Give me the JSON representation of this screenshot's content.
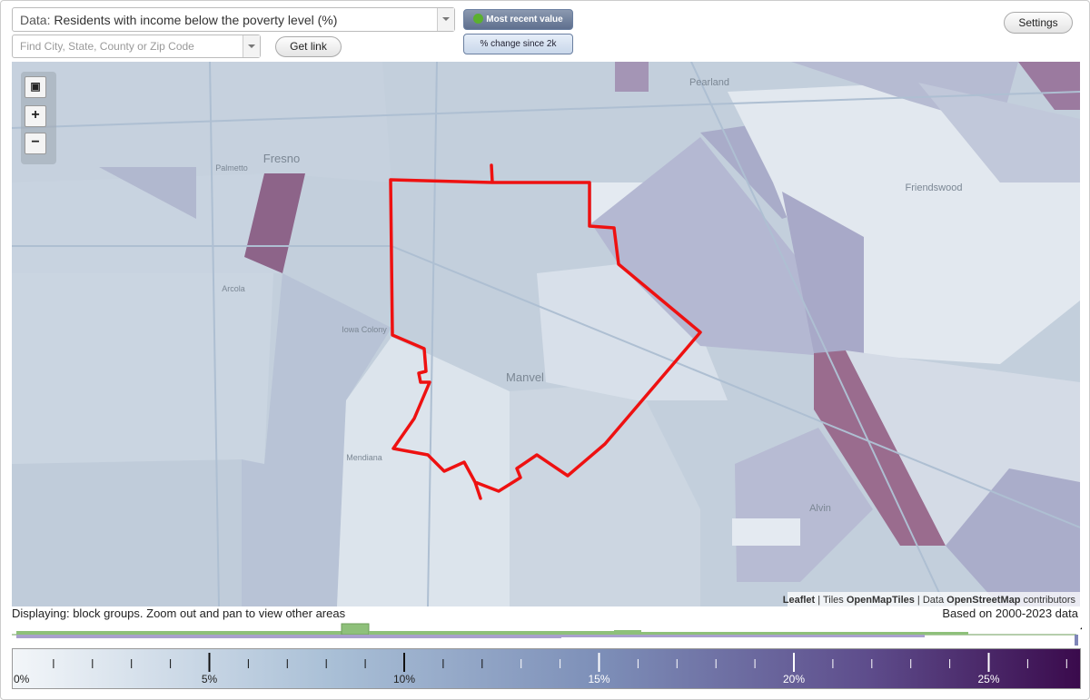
{
  "toolbar": {
    "data_label": "Data:",
    "data_select": "Residents with income below the poverty level (%)",
    "search_placeholder": "Find City, State, County or Zip Code",
    "get_link": "Get link",
    "most_recent": "Most recent value",
    "change_since": "% change since 2k",
    "settings": "Settings"
  },
  "map": {
    "places": [
      "Pearland",
      "Fresno",
      "Palmetto",
      "Friendswood",
      "Arcola",
      "Iowa Colony",
      "Manvel",
      "Mendiana",
      "Alvin"
    ],
    "attribution": {
      "leaflet": "Leaflet",
      "tiles": "Tiles",
      "tiles_src": "OpenMapTiles",
      "data": "Data",
      "data_src": "OpenStreetMap",
      "contrib": "contributors"
    }
  },
  "status": {
    "displaying": "Displaying: block groups. Zoom out and pan to view other areas",
    "based_on": "Based on 2000-2023 data",
    "help": "?"
  },
  "legend": {
    "labels": [
      "0%",
      "5%",
      "10%",
      "15%",
      "20%",
      "25%"
    ]
  }
}
